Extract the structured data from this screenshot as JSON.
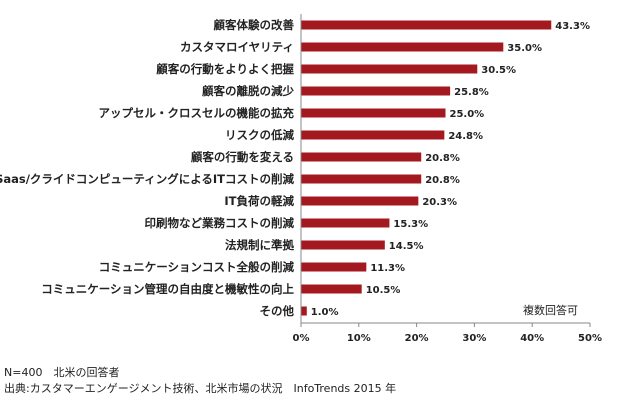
{
  "chart_data": {
    "type": "bar",
    "orientation": "horizontal",
    "categories": [
      "顧客体験の改善",
      "カスタマロイヤリティ",
      "顧客の行動をよりよく把握",
      "顧客の離脱の減少",
      "アップセル・クロスセルの機能の拡充",
      "リスクの低減",
      "顧客の行動を変える",
      "Saas/クライドコンピューティングによるITコストの削減",
      "IT負荷の軽減",
      "印刷物など業務コストの削減",
      "法規制に準拠",
      "コミュニケーションコスト全般の削減",
      "コミュニケーション管理の自由度と機敏性の向上",
      "その他"
    ],
    "values": [
      43.3,
      35.0,
      30.5,
      25.8,
      25.0,
      24.8,
      20.8,
      20.8,
      20.3,
      15.3,
      14.5,
      11.3,
      10.5,
      1.0
    ],
    "value_labels": [
      "43.3%",
      "35.0%",
      "30.5%",
      "25.8%",
      "25.0%",
      "24.8%",
      "20.8%",
      "20.8%",
      "20.3%",
      "15.3%",
      "14.5%",
      "11.3%",
      "10.5%",
      "1.0%"
    ],
    "x_ticks": [
      0,
      10,
      20,
      30,
      40,
      50
    ],
    "x_tick_labels": [
      "0%",
      "10%",
      "20%",
      "30%",
      "40%",
      "50%"
    ],
    "xlim": [
      0,
      50
    ],
    "bar_color": "#a3191f",
    "axis_color": "#888888",
    "grid": false,
    "legend": "none",
    "annotation": "複数回答可"
  },
  "footer": {
    "line1": "N=400　北米の回答者",
    "line2": "出典:カスタマーエンゲージメント技術、北米市場の状況　InfoTrends 2015 年"
  }
}
